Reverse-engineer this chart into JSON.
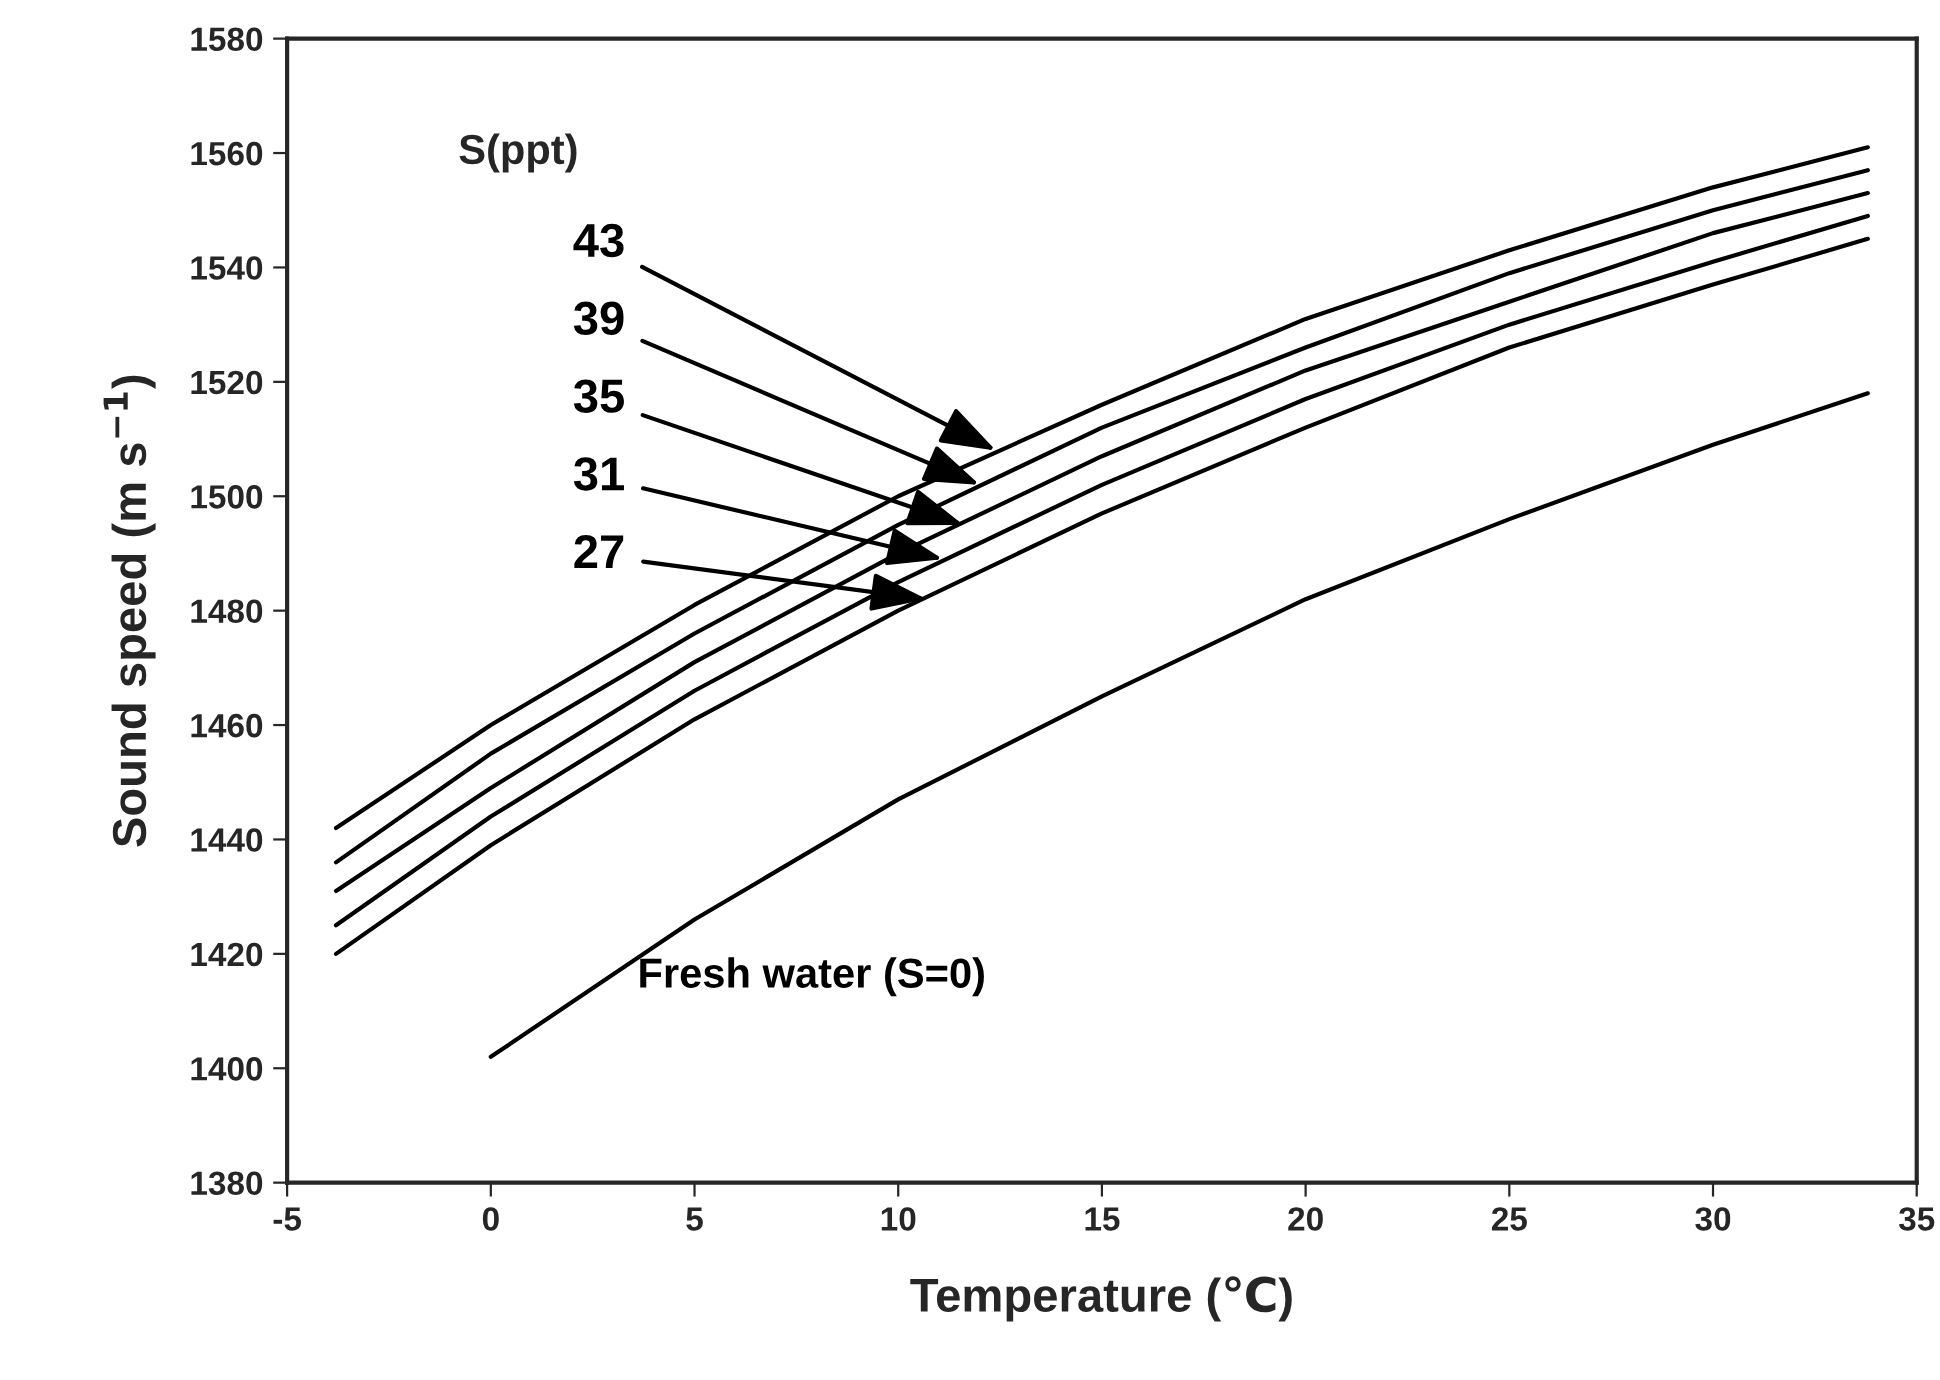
{
  "chart_data": {
    "type": "line",
    "xlabel": "Temperature (℃)",
    "ylabel": "Sound speed (m s$^{−1}$)",
    "xlim": [
      -5,
      35
    ],
    "xticks": [
      -5,
      0,
      5,
      10,
      15,
      20,
      25,
      30,
      35
    ],
    "ylim": [
      1380,
      1580
    ],
    "yticks": [
      1380,
      1400,
      1420,
      1440,
      1460,
      1480,
      1500,
      1520,
      1540,
      1560,
      1580
    ],
    "grid": false,
    "legend": false,
    "marker": "none",
    "line_style": "solid",
    "annotations": [
      "S(ppt)",
      {
        "text": "43",
        "x": 12.4,
        "y": 1508
      },
      {
        "text": "39",
        "x": 12.0,
        "y": 1502
      },
      {
        "text": "35",
        "x": 11.6,
        "y": 1495
      },
      {
        "text": "31",
        "x": 11.1,
        "y": 1489
      },
      {
        "text": "27",
        "x": 10.7,
        "y": 1482
      }
    ],
    "series": [
      {
        "color": "#000000",
        "x": [
          -3.8,
          0,
          5,
          10,
          15,
          20,
          25,
          30,
          33.8
        ],
        "values": [
          1442,
          1460,
          1481,
          1500,
          1516,
          1531,
          1543,
          1554,
          1561
        ]
      },
      {
        "color": "#000000",
        "x": [
          -3.8,
          0,
          5,
          10,
          15,
          20,
          25,
          30,
          33.8
        ],
        "values": [
          1436,
          1455,
          1476,
          1495,
          1512,
          1526,
          1539,
          1550,
          1557
        ]
      },
      {
        "color": "#000000",
        "x": [
          -3.8,
          0,
          5,
          10,
          15,
          20,
          25,
          30,
          33.8
        ],
        "values": [
          1431,
          1449,
          1471,
          1490,
          1507,
          1522,
          1534,
          1546,
          1553
        ]
      },
      {
        "color": "#000000",
        "x": [
          -3.8,
          0,
          5,
          10,
          15,
          20,
          25,
          30,
          33.8
        ],
        "values": [
          1425,
          1444,
          1466,
          1485,
          1502,
          1517,
          1530,
          1541,
          1549
        ]
      },
      {
        "color": "#000000",
        "x": [
          -3.8,
          0,
          5,
          10,
          15,
          20,
          25,
          30,
          33.8
        ],
        "values": [
          1420,
          1439,
          1461,
          1480,
          1497,
          1512,
          1526,
          1537,
          1545
        ]
      },
      {
        "name": "Fresh water (S=0)",
        "color": "#000000",
        "x": [
          0,
          5,
          10,
          15,
          20,
          25,
          30,
          33.8
        ],
        "values": [
          1402,
          1426,
          1447,
          1465,
          1482,
          1496,
          1509,
          1518
        ]
      }
    ]
  }
}
